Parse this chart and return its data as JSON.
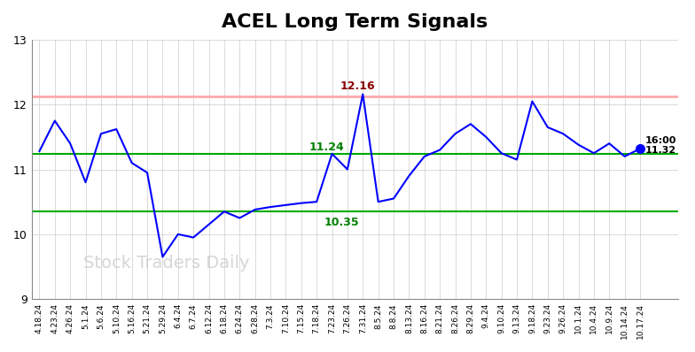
{
  "title": "ACEL Long Term Signals",
  "title_fontsize": 16,
  "title_fontweight": "bold",
  "line_color": "blue",
  "line_width": 1.5,
  "background_color": "#ffffff",
  "grid_color": "#cccccc",
  "ylim": [
    9,
    13
  ],
  "yticks": [
    9,
    10,
    11,
    12,
    13
  ],
  "red_hline": 12.12,
  "red_hline_color": "#ffaaaa",
  "green_hline1": 11.24,
  "green_hline1_color": "#00aa00",
  "green_hline2": 10.35,
  "green_hline2_color": "#00aa00",
  "watermark": "Stock Traders Daily",
  "watermark_color": "#cccccc",
  "watermark_fontsize": 14,
  "annotation_max_label": "12.16",
  "annotation_max_color": "darkred",
  "annotation_min_label": "10.35",
  "annotation_min_color": "green",
  "annotation_mid_label": "11.24",
  "annotation_mid_color": "green",
  "annotation_end_label1": "16:00",
  "annotation_end_label2": "11.32",
  "annotation_end_color": "black",
  "end_dot_color": "blue",
  "x_labels": [
    "4.18.24",
    "4.23.24",
    "4.26.24",
    "5.1.24",
    "5.6.24",
    "5.10.24",
    "5.16.24",
    "5.21.24",
    "5.29.24",
    "6.4.24",
    "6.7.24",
    "6.12.24",
    "6.18.24",
    "6.24.24",
    "6.28.24",
    "7.3.24",
    "7.10.24",
    "7.15.24",
    "7.18.24",
    "7.23.24",
    "7.26.24",
    "7.31.24",
    "8.5.24",
    "8.8.24",
    "8.13.24",
    "8.16.24",
    "8.21.24",
    "8.26.24",
    "8.29.24",
    "9.4.24",
    "9.10.24",
    "9.13.24",
    "9.18.24",
    "9.23.24",
    "9.26.24",
    "10.1.24",
    "10.4.24",
    "10.9.24",
    "10.14.24",
    "10.17.24"
  ],
  "y_values": [
    11.28,
    11.75,
    11.4,
    10.8,
    11.55,
    11.62,
    11.1,
    10.95,
    9.65,
    10.0,
    9.95,
    10.15,
    10.35,
    10.25,
    10.38,
    10.42,
    10.45,
    10.48,
    10.5,
    11.24,
    11.0,
    12.16,
    10.5,
    10.55,
    10.9,
    11.2,
    11.3,
    11.55,
    11.7,
    11.5,
    11.25,
    11.15,
    12.05,
    11.65,
    11.55,
    11.38,
    11.25,
    11.4,
    11.2,
    11.32
  ]
}
